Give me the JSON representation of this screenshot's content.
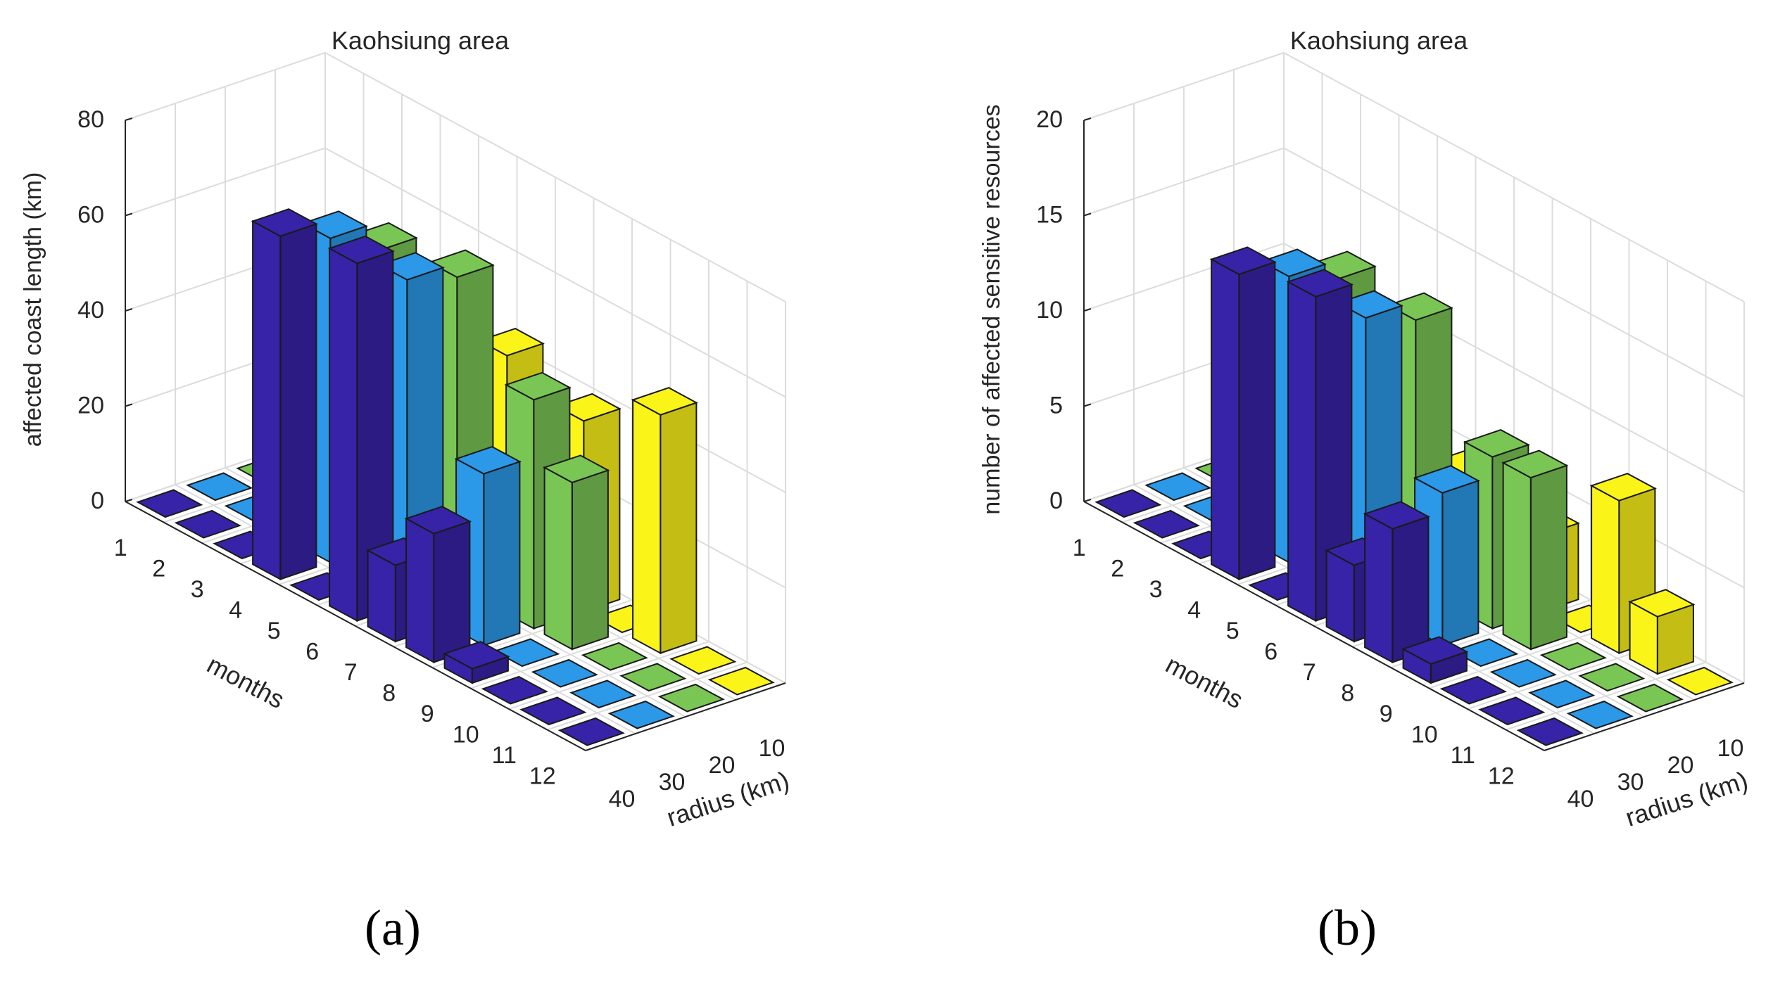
{
  "captions": [
    "(a)",
    "(b)"
  ],
  "colors": {
    "r40": "#3723a7",
    "r30": "#2b98e8",
    "r20": "#7ac655",
    "r10": "#fbf419",
    "grid": "#dcdcdc",
    "axis": "#262626"
  },
  "chart_data": [
    {
      "type": "bar3d",
      "title": "Kaohsiung area",
      "xlabel": "months",
      "ylabel": "radius (km)",
      "zlabel": "affected coast length (km)",
      "zlim": [
        0,
        80
      ],
      "zticks": [
        "0",
        "20",
        "40",
        "60",
        "80"
      ],
      "months": [
        "1",
        "2",
        "3",
        "4",
        "5",
        "6",
        "7",
        "8",
        "9",
        "10",
        "11",
        "12"
      ],
      "radii": [
        "40",
        "30",
        "20",
        "10"
      ],
      "grid": true,
      "series": [
        {
          "name": "40",
          "values": [
            0,
            0,
            0,
            72,
            0,
            75,
            16,
            27,
            3,
            0,
            0,
            0
          ]
        },
        {
          "name": "30",
          "values": [
            0,
            0,
            0,
            68,
            0,
            68,
            0,
            36,
            0,
            0,
            0,
            0
          ]
        },
        {
          "name": "20",
          "values": [
            0,
            0,
            0,
            62,
            0,
            65,
            0,
            48,
            35,
            0,
            0,
            0
          ]
        },
        {
          "name": "10",
          "values": [
            0,
            0,
            0,
            0,
            0,
            45,
            0,
            40,
            0,
            50,
            0,
            0
          ]
        }
      ]
    },
    {
      "type": "bar3d",
      "title": "Kaohsiung area",
      "xlabel": "months",
      "ylabel": "radius (km)",
      "zlabel": "number of affected sensitive resources",
      "zlim": [
        0,
        20
      ],
      "zticks": [
        "0",
        "5",
        "10",
        "15",
        "20"
      ],
      "months": [
        "1",
        "2",
        "3",
        "4",
        "5",
        "6",
        "7",
        "8",
        "9",
        "10",
        "11",
        "12"
      ],
      "radii": [
        "40",
        "30",
        "20",
        "10"
      ],
      "grid": true,
      "series": [
        {
          "name": "40",
          "values": [
            0,
            0,
            0,
            16,
            0,
            17,
            4,
            7,
            1,
            0,
            0,
            0
          ]
        },
        {
          "name": "30",
          "values": [
            0,
            0,
            0,
            15,
            0,
            15,
            0,
            8,
            0,
            0,
            0,
            0
          ]
        },
        {
          "name": "20",
          "values": [
            0,
            0,
            0,
            14,
            0,
            14,
            0,
            9,
            9,
            0,
            0,
            0
          ]
        },
        {
          "name": "10",
          "values": [
            0,
            0,
            0,
            0,
            0,
            5,
            0,
            4,
            0,
            8,
            3,
            0
          ]
        }
      ]
    }
  ]
}
